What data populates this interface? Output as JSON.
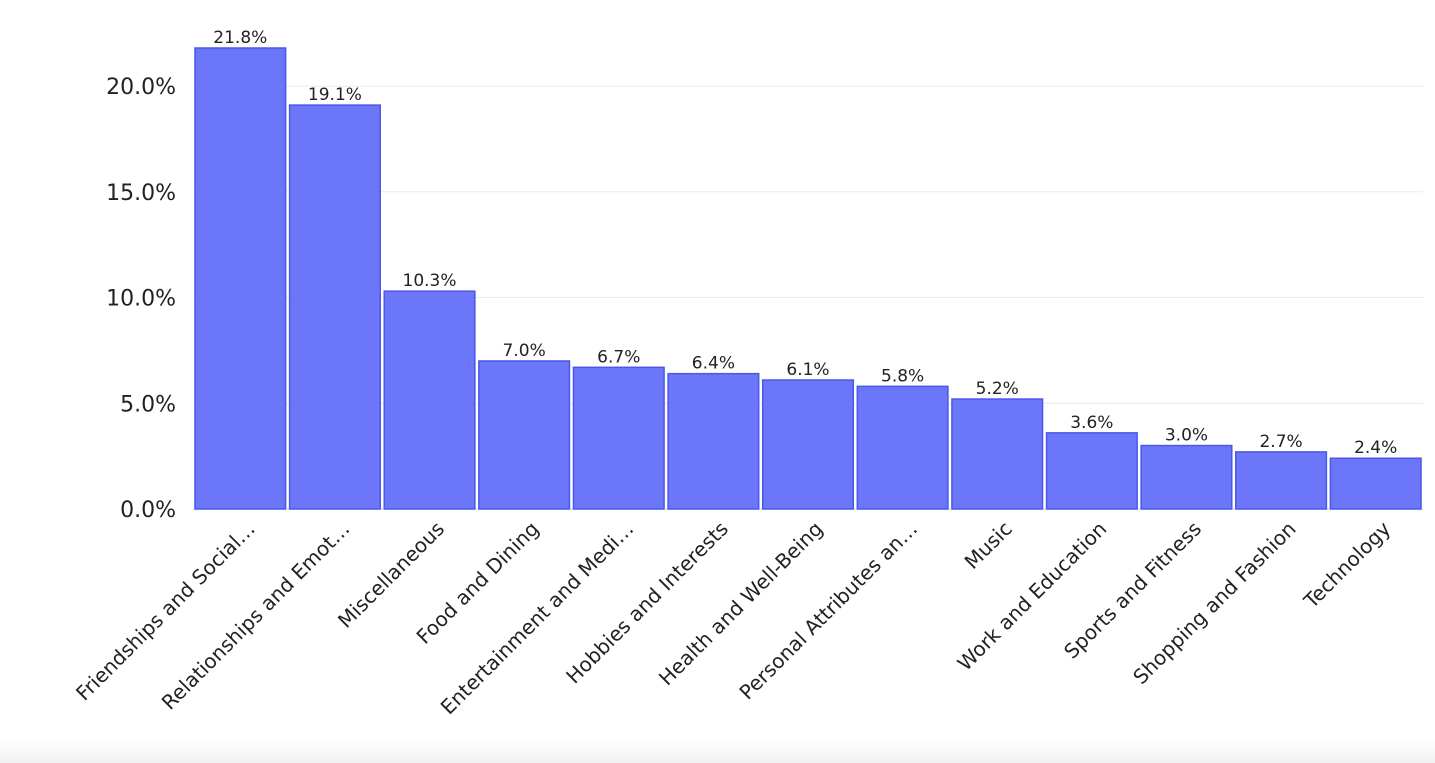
{
  "chart_data": {
    "type": "bar",
    "title": "",
    "xlabel": "",
    "ylabel": "",
    "categories": [
      "Friendships and Social…",
      "Relationships and Emot…",
      "Miscellaneous",
      "Food and Dining",
      "Entertainment and Medi…",
      "Hobbies and Interests",
      "Health and Well-Being",
      "Personal Attributes an…",
      "Music",
      "Work and Education",
      "Sports and Fitness",
      "Shopping and Fashion",
      "Technology"
    ],
    "values": [
      21.8,
      19.1,
      10.3,
      7.0,
      6.7,
      6.4,
      6.1,
      5.8,
      5.2,
      3.6,
      3.0,
      2.7,
      2.4
    ],
    "data_labels": [
      "21.8%",
      "19.1%",
      "10.3%",
      "7.0%",
      "6.7%",
      "6.4%",
      "6.1%",
      "5.8%",
      "5.2%",
      "3.6%",
      "3.0%",
      "2.7%",
      "2.4%"
    ],
    "y_ticks": [
      0,
      5,
      10,
      15,
      20
    ],
    "y_tick_labels": [
      "0.0%",
      "5.0%",
      "10.0%",
      "15.0%",
      "20.0%"
    ],
    "ylim": [
      0,
      21.8
    ],
    "unit": "%",
    "grid": true,
    "legend": "none",
    "colors": {
      "bar_fill": "#6b77f8",
      "bar_stroke": "#4a57ea"
    }
  }
}
